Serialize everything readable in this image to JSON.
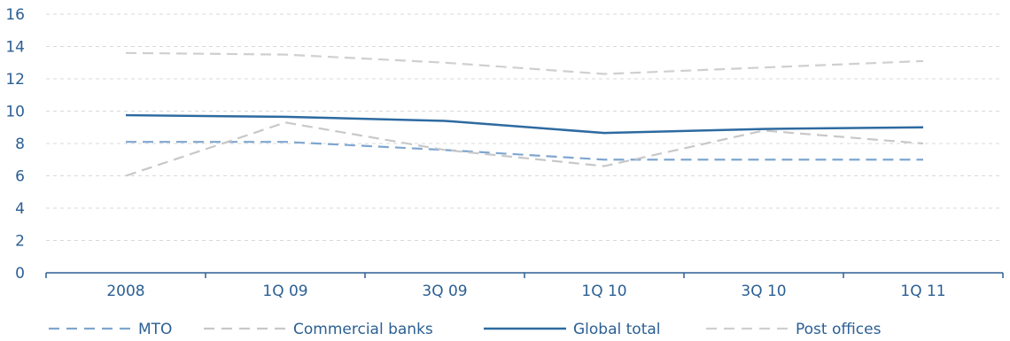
{
  "chart_data": {
    "type": "line",
    "title": "",
    "xlabel": "",
    "ylabel": "",
    "categories": [
      "2008",
      "1Q 09",
      "3Q 09",
      "1Q 10",
      "3Q 10",
      "1Q 11"
    ],
    "ylim": [
      0,
      16
    ],
    "yticks": [
      0,
      2,
      4,
      6,
      8,
      10,
      12,
      14,
      16
    ],
    "grid": true,
    "legend_position": "bottom",
    "series": [
      {
        "name": "MTO",
        "values": [
          8.1,
          8.1,
          7.6,
          7.0,
          7.0,
          7.0
        ],
        "color": "#7fa6cf",
        "style": "dashed"
      },
      {
        "name": "Commercial banks",
        "values": [
          6.0,
          9.3,
          7.6,
          6.6,
          8.8,
          8.0
        ],
        "color": "#c8c8c8",
        "style": "dashed"
      },
      {
        "name": "Global total",
        "values": [
          9.75,
          9.65,
          9.4,
          8.65,
          8.9,
          9.0
        ],
        "color": "#2d6aa0",
        "style": "solid"
      },
      {
        "name": "Post offices",
        "values": [
          13.6,
          13.5,
          13.0,
          12.3,
          12.7,
          13.1
        ],
        "color": "#cfcfcf",
        "style": "dashed"
      }
    ]
  }
}
